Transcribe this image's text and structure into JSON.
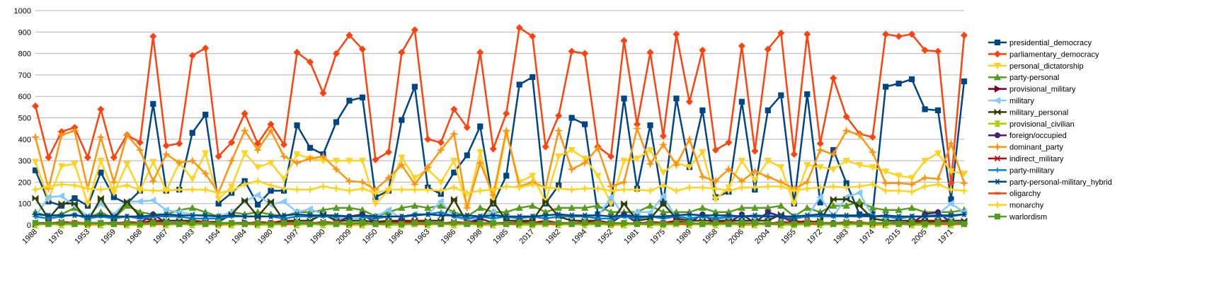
{
  "chart_data": {
    "type": "line",
    "categories": [
      "1988",
      null,
      "1976",
      null,
      "1953",
      null,
      "1959",
      null,
      "1968",
      null,
      "1967",
      null,
      "1993",
      null,
      "1954",
      null,
      "1984",
      null,
      "1980",
      null,
      "1997",
      null,
      "1990",
      null,
      "2009",
      null,
      "1950",
      null,
      "1996",
      null,
      "1963",
      null,
      "1986",
      null,
      "1998",
      null,
      "1985",
      null,
      "2017",
      null,
      "1982",
      null,
      "1994",
      null,
      "1952",
      null,
      "1981",
      null,
      "1975",
      null,
      "1989",
      null,
      "1958",
      null,
      "2006",
      null,
      "2004",
      null,
      "1955",
      null,
      "1972",
      null,
      "1983",
      null,
      "1974",
      null,
      "2015",
      null,
      "2005",
      null,
      "1971",
      null
    ],
    "ylim": [
      0,
      1000
    ],
    "yticks": [
      0,
      100,
      200,
      300,
      400,
      500,
      600,
      700,
      800,
      900,
      1000
    ],
    "grid": true,
    "legend": "right",
    "series": [
      {
        "name": "presidential_democracy",
        "color": "#004586",
        "marker": "square",
        "values": [
          255,
          110,
          90,
          125,
          90,
          245,
          130,
          100,
          160,
          565,
          160,
          165,
          430,
          515,
          100,
          150,
          205,
          95,
          160,
          160,
          465,
          360,
          330,
          480,
          580,
          595,
          130,
          160,
          490,
          645,
          175,
          145,
          245,
          325,
          460,
          100,
          230,
          655,
          690,
          100,
          185,
          500,
          470,
          50,
          100,
          590,
          170,
          465,
          100,
          590,
          270,
          535,
          130,
          155,
          575,
          165,
          535,
          605,
          100,
          610,
          105,
          350,
          195,
          50,
          50,
          645,
          660,
          680,
          540,
          535,
          120,
          670
        ]
      },
      {
        "name": "parliamentary_democracy",
        "color": "#ff420e",
        "marker": "diamond",
        "values": [
          555,
          315,
          435,
          455,
          315,
          540,
          315,
          420,
          385,
          880,
          370,
          380,
          790,
          825,
          320,
          385,
          520,
          380,
          470,
          375,
          805,
          760,
          615,
          800,
          885,
          820,
          305,
          340,
          805,
          910,
          400,
          385,
          540,
          455,
          805,
          355,
          520,
          920,
          880,
          365,
          510,
          810,
          800,
          365,
          320,
          860,
          470,
          805,
          415,
          890,
          575,
          815,
          350,
          385,
          835,
          345,
          820,
          895,
          330,
          890,
          380,
          685,
          505,
          425,
          410,
          890,
          880,
          890,
          815,
          810,
          195,
          885
        ]
      },
      {
        "name": "personal_dictatorship",
        "color": "#ffd320",
        "marker": "tri-down",
        "values": [
          295,
          120,
          275,
          285,
          100,
          300,
          150,
          285,
          160,
          295,
          160,
          290,
          215,
          335,
          120,
          180,
          335,
          270,
          290,
          215,
          330,
          310,
          300,
          300,
          300,
          300,
          100,
          160,
          315,
          220,
          260,
          200,
          300,
          85,
          340,
          110,
          430,
          200,
          230,
          110,
          320,
          350,
          310,
          230,
          100,
          300,
          310,
          350,
          245,
          290,
          270,
          340,
          120,
          175,
          300,
          210,
          300,
          270,
          100,
          280,
          270,
          260,
          300,
          280,
          270,
          250,
          230,
          220,
          300,
          335,
          250,
          240
        ]
      },
      {
        "name": "party-personal",
        "color": "#579d1c",
        "marker": "tri-up",
        "values": [
          60,
          40,
          50,
          80,
          30,
          60,
          30,
          90,
          60,
          50,
          50,
          70,
          80,
          60,
          40,
          60,
          50,
          60,
          50,
          40,
          60,
          60,
          70,
          80,
          80,
          70,
          40,
          60,
          80,
          90,
          80,
          90,
          60,
          40,
          80,
          60,
          60,
          80,
          90,
          60,
          80,
          80,
          80,
          90,
          60,
          60,
          60,
          90,
          60,
          60,
          60,
          80,
          60,
          60,
          80,
          80,
          80,
          90,
          40,
          80,
          60,
          90,
          90,
          110,
          80,
          70,
          70,
          80,
          60,
          60,
          60,
          70
        ]
      },
      {
        "name": "provisional_military",
        "color": "#7e0021",
        "marker": "tri-right",
        "values": [
          5,
          5,
          10,
          5,
          5,
          5,
          10,
          5,
          5,
          5,
          5,
          5,
          10,
          5,
          5,
          5,
          10,
          5,
          5,
          5,
          5,
          5,
          10,
          5,
          5,
          5,
          10,
          5,
          5,
          5,
          5,
          5,
          10,
          5,
          5,
          5,
          10,
          5,
          5,
          5,
          5,
          5,
          10,
          5,
          5,
          5,
          10,
          5,
          5,
          5,
          5,
          5,
          10,
          5,
          5,
          5,
          10,
          5,
          5,
          5,
          5,
          5,
          10,
          5,
          5,
          5,
          10,
          5,
          5,
          5,
          5,
          5
        ]
      },
      {
        "name": "military",
        "color": "#83caff",
        "marker": "tri-left",
        "values": [
          40,
          130,
          135,
          90,
          40,
          100,
          50,
          110,
          110,
          115,
          70,
          60,
          50,
          40,
          40,
          60,
          110,
          140,
          95,
          110,
          60,
          75,
          50,
          30,
          30,
          30,
          40,
          70,
          30,
          50,
          50,
          110,
          40,
          20,
          40,
          60,
          30,
          40,
          40,
          30,
          40,
          40,
          40,
          40,
          130,
          40,
          60,
          60,
          135,
          30,
          50,
          40,
          30,
          30,
          40,
          40,
          50,
          40,
          40,
          40,
          130,
          40,
          130,
          150,
          40,
          40,
          40,
          40,
          40,
          50,
          100,
          60
        ]
      },
      {
        "name": "military_personal",
        "color": "#314004",
        "marker": "bowtie",
        "values": [
          125,
          30,
          100,
          100,
          15,
          125,
          30,
          110,
          40,
          20,
          20,
          20,
          20,
          15,
          15,
          50,
          115,
          40,
          110,
          20,
          20,
          20,
          50,
          20,
          20,
          20,
          15,
          20,
          20,
          20,
          20,
          20,
          120,
          10,
          20,
          110,
          20,
          20,
          20,
          110,
          40,
          20,
          20,
          20,
          10,
          100,
          20,
          30,
          100,
          30,
          20,
          20,
          20,
          20,
          20,
          20,
          20,
          50,
          20,
          10,
          20,
          120,
          120,
          90,
          30,
          20,
          20,
          20,
          20,
          20,
          20,
          20
        ]
      },
      {
        "name": "provisional_civilian",
        "color": "#aecf00",
        "marker": "hourglass",
        "values": [
          0,
          5,
          0,
          5,
          0,
          0,
          5,
          0,
          0,
          5,
          0,
          5,
          0,
          5,
          0,
          0,
          5,
          0,
          0,
          5,
          0,
          5,
          0,
          5,
          0,
          0,
          5,
          0,
          0,
          5,
          0,
          5,
          0,
          5,
          0,
          0,
          5,
          0,
          0,
          5,
          0,
          5,
          0,
          5,
          0,
          0,
          5,
          0,
          0,
          5,
          0,
          5,
          0,
          5,
          0,
          0,
          5,
          0,
          0,
          5,
          0,
          5,
          0,
          5,
          0,
          0,
          5,
          0,
          0,
          5,
          0,
          5
        ]
      },
      {
        "name": "foreign/occupied",
        "color": "#4b1f6f",
        "marker": "circle",
        "values": [
          10,
          10,
          10,
          10,
          10,
          10,
          10,
          10,
          10,
          50,
          10,
          10,
          10,
          10,
          10,
          10,
          10,
          10,
          10,
          10,
          10,
          10,
          10,
          10,
          40,
          50,
          10,
          10,
          20,
          10,
          10,
          10,
          10,
          10,
          30,
          10,
          10,
          10,
          10,
          10,
          10,
          10,
          10,
          10,
          10,
          50,
          10,
          10,
          10,
          10,
          10,
          50,
          10,
          10,
          50,
          10,
          60,
          40,
          10,
          10,
          10,
          10,
          10,
          10,
          10,
          10,
          10,
          10,
          50,
          60,
          10,
          10
        ]
      },
      {
        "name": "dominant_party",
        "color": "#ff950e",
        "marker": "star",
        "values": [
          410,
          170,
          420,
          440,
          170,
          410,
          200,
          420,
          350,
          205,
          330,
          290,
          300,
          240,
          150,
          300,
          440,
          350,
          440,
          320,
          290,
          310,
          320,
          260,
          205,
          200,
          165,
          220,
          280,
          190,
          270,
          350,
          425,
          80,
          290,
          140,
          440,
          180,
          200,
          175,
          440,
          260,
          290,
          360,
          180,
          200,
          450,
          285,
          375,
          280,
          400,
          225,
          205,
          260,
          205,
          250,
          225,
          200,
          170,
          200,
          350,
          330,
          440,
          420,
          340,
          195,
          195,
          190,
          220,
          215,
          380,
          195
        ]
      },
      {
        "name": "indirect_military",
        "color": "#c5000b",
        "marker": "x",
        "values": [
          10,
          5,
          15,
          10,
          5,
          10,
          5,
          15,
          10,
          20,
          10,
          5,
          15,
          10,
          5,
          10,
          5,
          15,
          10,
          20,
          10,
          5,
          15,
          10,
          5,
          10,
          5,
          15,
          10,
          20,
          10,
          5,
          15,
          10,
          5,
          10,
          5,
          15,
          10,
          20,
          10,
          5,
          15,
          10,
          5,
          10,
          5,
          15,
          10,
          20,
          10,
          5,
          15,
          10,
          5,
          10,
          5,
          15,
          10,
          20,
          10,
          5,
          15,
          10,
          5,
          10,
          5,
          15,
          10,
          20,
          10,
          5
        ]
      },
      {
        "name": "party-military",
        "color": "#0084d1",
        "marker": "plus",
        "values": [
          40,
          30,
          40,
          50,
          30,
          40,
          30,
          40,
          30,
          40,
          40,
          40,
          30,
          30,
          30,
          40,
          40,
          40,
          40,
          30,
          40,
          40,
          40,
          40,
          40,
          40,
          30,
          40,
          40,
          50,
          50,
          60,
          40,
          30,
          40,
          30,
          40,
          30,
          40,
          30,
          40,
          40,
          40,
          30,
          30,
          40,
          30,
          40,
          30,
          40,
          30,
          40,
          30,
          40,
          40,
          40,
          40,
          40,
          30,
          40,
          40,
          40,
          40,
          40,
          40,
          40,
          30,
          40,
          40,
          40,
          40,
          50
        ]
      },
      {
        "name": "party-personal-military_hybrid",
        "color": "#004586",
        "marker": "asterisk",
        "values": [
          50,
          45,
          45,
          45,
          40,
          45,
          40,
          40,
          40,
          45,
          50,
          45,
          45,
          45,
          40,
          45,
          40,
          40,
          40,
          45,
          50,
          45,
          45,
          45,
          40,
          45,
          40,
          40,
          40,
          45,
          50,
          45,
          45,
          45,
          40,
          45,
          40,
          40,
          40,
          45,
          50,
          45,
          45,
          45,
          40,
          45,
          40,
          40,
          40,
          45,
          50,
          45,
          45,
          45,
          40,
          45,
          40,
          40,
          40,
          45,
          50,
          45,
          45,
          45,
          40,
          45,
          40,
          40,
          40,
          45,
          45,
          50
        ]
      },
      {
        "name": "oligarchy",
        "color": "#ff420e",
        "marker": "hbar",
        "values": [
          5,
          10,
          5,
          15,
          5,
          10,
          5,
          5,
          10,
          5,
          5,
          10,
          5,
          15,
          5,
          10,
          5,
          5,
          10,
          5,
          5,
          10,
          5,
          15,
          5,
          10,
          5,
          5,
          10,
          5,
          5,
          10,
          5,
          15,
          5,
          10,
          5,
          5,
          10,
          5,
          5,
          10,
          5,
          15,
          5,
          10,
          5,
          5,
          10,
          5,
          5,
          10,
          5,
          15,
          5,
          10,
          5,
          5,
          10,
          5,
          5,
          10,
          5,
          15,
          5,
          10,
          5,
          5,
          10,
          5,
          5,
          5
        ]
      },
      {
        "name": "monarchy",
        "color": "#ffd320",
        "marker": "star",
        "values": [
          165,
          180,
          190,
          185,
          170,
          165,
          175,
          185,
          165,
          160,
          160,
          165,
          165,
          165,
          150,
          160,
          190,
          205,
          185,
          170,
          165,
          165,
          180,
          170,
          160,
          170,
          150,
          165,
          165,
          165,
          165,
          160,
          175,
          150,
          160,
          165,
          180,
          175,
          190,
          175,
          170,
          165,
          170,
          170,
          160,
          165,
          165,
          160,
          185,
          160,
          175,
          175,
          170,
          160,
          175,
          175,
          180,
          180,
          160,
          170,
          175,
          180,
          175,
          180,
          190,
          160,
          160,
          155,
          180,
          190,
          165,
          160
        ]
      },
      {
        "name": "warlordism",
        "color": "#579d1c",
        "marker": "square",
        "values": [
          10,
          5,
          10,
          5,
          10,
          10,
          5,
          10,
          5,
          10,
          10,
          5,
          10,
          5,
          10,
          10,
          5,
          10,
          5,
          10,
          10,
          5,
          10,
          5,
          10,
          10,
          5,
          10,
          5,
          10,
          10,
          5,
          10,
          5,
          10,
          10,
          5,
          10,
          5,
          10,
          10,
          5,
          10,
          5,
          10,
          10,
          5,
          10,
          5,
          10,
          10,
          5,
          10,
          5,
          10,
          10,
          5,
          10,
          5,
          10,
          10,
          5,
          10,
          5,
          10,
          10,
          5,
          10,
          5,
          10,
          10,
          5
        ]
      }
    ]
  }
}
